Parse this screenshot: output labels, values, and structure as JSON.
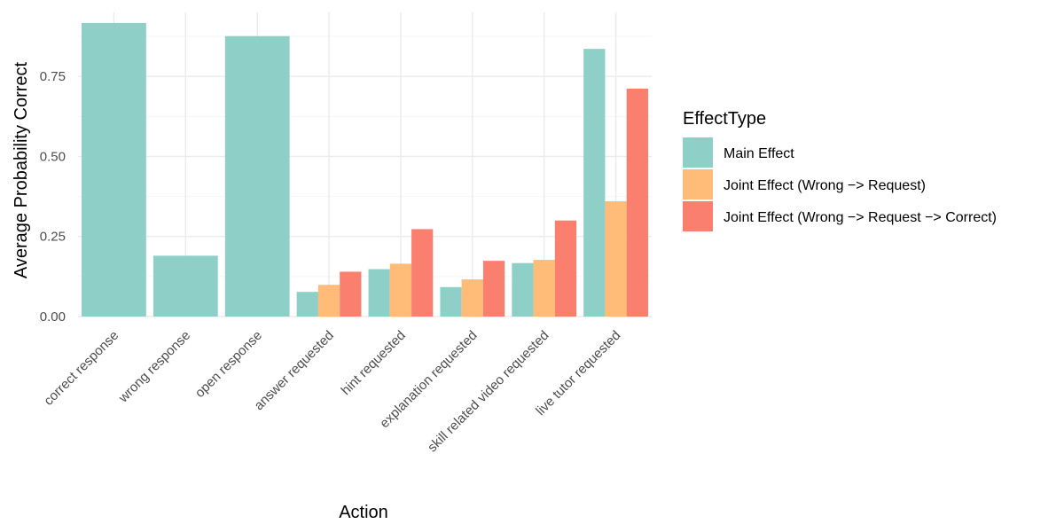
{
  "chart_data": {
    "type": "bar",
    "title": "",
    "xlabel": "Action",
    "ylabel": "Average Probability Correct",
    "ylim": [
      0,
      0.95
    ],
    "yticks": [
      0,
      0.25,
      0.5,
      0.75
    ],
    "ytick_labels": [
      "0.00",
      "0.25",
      "0.50",
      "0.75"
    ],
    "grid": true,
    "legend_position": "right",
    "legend_title": "EffectType",
    "categories": [
      "correct response",
      "wrong response",
      "open response",
      "answer requested",
      "hint requested",
      "explanation requested",
      "skill related video requested",
      "live tutor requested"
    ],
    "series": [
      {
        "name": "Main Effect",
        "color": "#8ECFC8",
        "values": [
          0.917,
          0.19,
          0.876,
          0.077,
          0.148,
          0.092,
          0.167,
          0.836
        ]
      },
      {
        "name": "Joint Effect (Wrong −> Request)",
        "color": "#FFBB78",
        "values": [
          null,
          null,
          null,
          0.099,
          0.165,
          0.116,
          0.177,
          0.36
        ]
      },
      {
        "name": "Joint Effect (Wrong −> Request −> Correct)",
        "color": "#FA7F6F",
        "values": [
          null,
          null,
          null,
          0.14,
          0.273,
          0.174,
          0.3,
          0.712
        ]
      }
    ]
  }
}
